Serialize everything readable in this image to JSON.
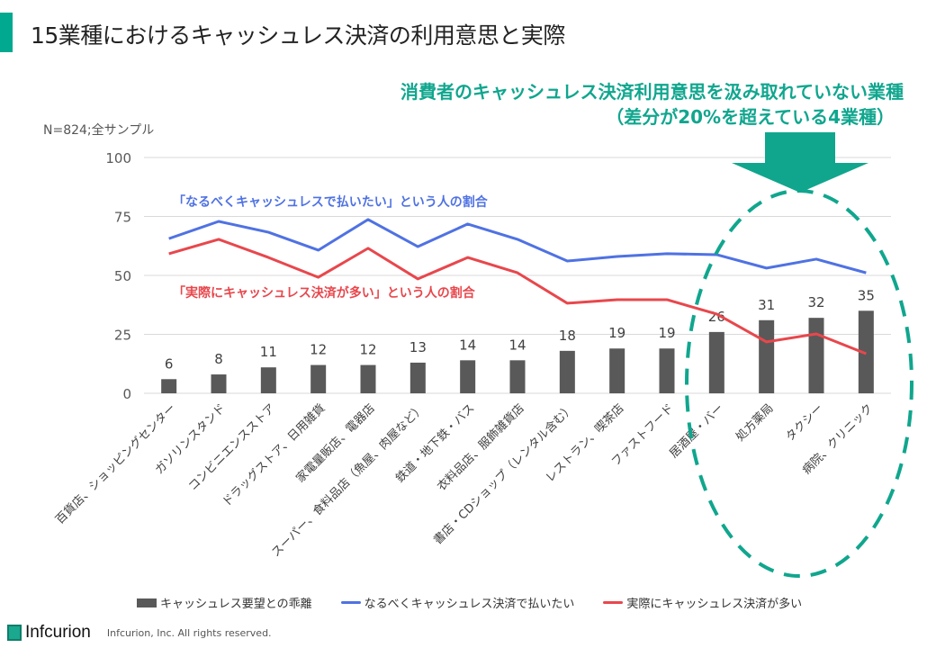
{
  "page": {
    "title": "15業種におけるキャッシュレス決済の利用意思と実際",
    "callout_line1": "消費者のキャッシュレス決済利用意思を汲み取れていない業種",
    "callout_line2": "（差分が20%を超えている4業種）",
    "sample_note": "N=824;全サンプル",
    "brand_color": "#00A98F",
    "footer": {
      "logo_text": "Infcurion",
      "copyright": "Infcurion, Inc.  All rights reserved."
    }
  },
  "chart_data": {
    "type": "bar",
    "title": "15業種におけるキャッシュレス決済の利用意思と実際",
    "xlabel": "",
    "ylabel": "",
    "ylim": [
      0,
      100
    ],
    "yticks": [
      0,
      25,
      50,
      75,
      100
    ],
    "grid": true,
    "legend_position": "bottom",
    "categories": [
      "百貨店、ショッピングセンター",
      "ガソリンスタンド",
      "コンビニエンスストア",
      "ドラッグストア、日用雑貨",
      "家電量販店、電器店",
      "スーパー、食料品店（魚屋、肉屋など）",
      "鉄道・地下鉄・バス",
      "衣料品店、服飾雑貨店",
      "書店・CDショップ（レンタル含む）",
      "レストラン、喫茶店",
      "ファストフード",
      "居酒屋・バー",
      "処方薬局",
      "タクシー",
      "病院、クリニック"
    ],
    "series": [
      {
        "name": "キャッシュレス要望との乖離",
        "type": "bar",
        "color": "#595959",
        "values": [
          6,
          8,
          11,
          12,
          12,
          13,
          14,
          14,
          18,
          19,
          19,
          26,
          31,
          32,
          35
        ]
      },
      {
        "name": "なるべくキャッシュレス決済で払いたい",
        "type": "line",
        "color": "#4F72E3",
        "values": [
          65.6,
          72.9,
          68.3,
          60.7,
          73.7,
          62.2,
          71.8,
          65.3,
          56.1,
          58.0,
          59.2,
          58.8,
          53.1,
          56.9,
          51.1
        ]
      },
      {
        "name": "実際にキャッシュレス決済が多い",
        "type": "line",
        "color": "#E8474C",
        "values": [
          59.2,
          65.3,
          57.6,
          49.2,
          61.5,
          48.5,
          57.6,
          51.1,
          38.2,
          39.7,
          39.7,
          33.6,
          21.8,
          25.2,
          16.8
        ]
      }
    ],
    "annotations": [
      {
        "text": "「なるべくキャッシュレスで払いたい」という人の割合",
        "color": "#4F72E3"
      },
      {
        "text": "「実際にキャッシュレス決済が多い」という人の割合",
        "color": "#E8474C"
      }
    ],
    "highlight": {
      "categories": [
        "居酒屋・バー",
        "処方薬局",
        "タクシー",
        "病院、クリニック"
      ],
      "color": "#10A68E"
    }
  }
}
